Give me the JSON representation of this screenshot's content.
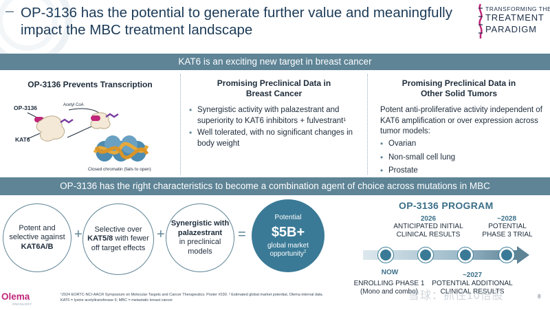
{
  "header": {
    "title": "OP-3136 has the potential to generate further value and meaningfully impact the MBC treatment landscape",
    "brand": {
      "line1": "TRANSFORMING THE",
      "line2": "TREATMENT",
      "line3": "PARADIGM"
    }
  },
  "banner_top": "KAT6 is an exciting new target in breast cancer",
  "col1": {
    "title": "OP-3136 Prevents Transcription",
    "diagram": {
      "label_drug": "OP-3136",
      "label_acetyl": "Acetyl CoA",
      "label_kat6": "KAT6",
      "label_chromatin": "Closed chromatin (fails to open)"
    }
  },
  "col2": {
    "title_line1": "Promising Preclinical Data in",
    "title_line2": "Breast Cancer",
    "bullets": [
      "Synergistic activity with palazestrant and superiority to KAT6 inhibitors + fulvestrant¹",
      "Well tolerated, with no significant changes in body weight"
    ]
  },
  "col3": {
    "title_line1": "Promising Preclinical Data in",
    "title_line2": "Other Solid Tumors",
    "intro": "Potent anti-proliferative activity independent of KAT6 amplification or over expression across tumor models:",
    "bullets": [
      "Ovarian",
      "Non-small cell lung",
      "Prostate"
    ]
  },
  "banner_mid": "OP-3136 has the right characteristics to become a combination agent of choice across mutations in MBC",
  "characteristics": {
    "c1_a": "Potent and selective against",
    "c1_b": "KAT6A/B",
    "c2_a": "Selective over",
    "c2_b": "KAT5/8",
    "c2_c": "with fewer off target effects",
    "c3_a": "Synergistic with palazestrant",
    "c3_b": "in preclinical models",
    "plus": "+",
    "equals": "=",
    "potential_label": "Potential",
    "potential_value": "$5B+",
    "potential_sub": "global market opportunity",
    "potential_sup": "2"
  },
  "program": {
    "title": "OP-3136 PROGRAM",
    "m2026_year": "2026",
    "m2026_text1": "ANTICIPATED INITIAL",
    "m2026_text2": "CLINICAL RESULTS",
    "m2028_year": "~2028",
    "m2028_text1": "POTENTIAL",
    "m2028_text2": "PHASE 3 TRIAL",
    "now_year": "NOW",
    "now_text1": "ENROLLING PHASE 1",
    "now_text2": "(Mono and combo)",
    "m2027_year": "~2027",
    "m2027_text1": "POTENTIAL ADDITIONAL",
    "m2027_text2": "CLINICAL RESULTS"
  },
  "footer": {
    "logo": "Olema",
    "logo_sub": "ONCOLOGY",
    "note1": "¹2024 EORTC-NCI-AACR Symposium on Molecular Targets and Cancer Therapeutics. Poster #230. ² Estimated global market potential, Olema internal data.",
    "note2": "KAT6 = lysine acetyltransferase 6; MBC = metastatic breast cancer",
    "watermark": "雪球：抓住10倍股",
    "page": "8"
  },
  "colors": {
    "banner": "#5e8496",
    "accent": "#3a7a96",
    "logo": "#c0267a",
    "title": "#1b3a57"
  }
}
